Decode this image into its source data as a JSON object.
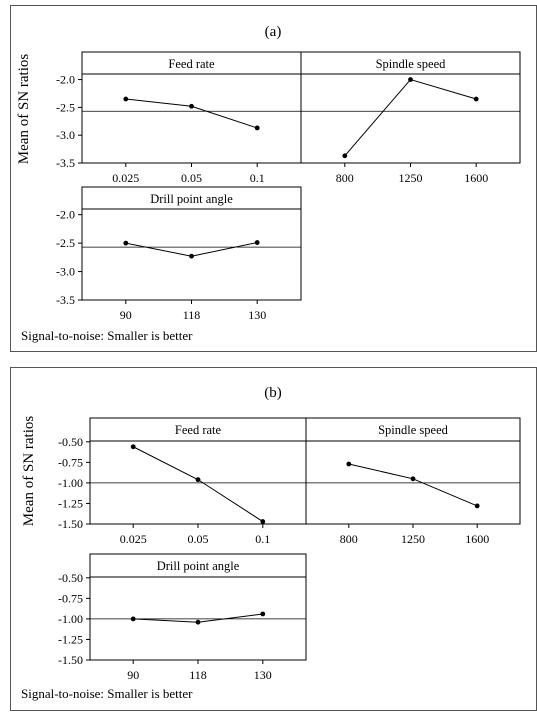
{
  "figures": [
    {
      "panel_label": "(a)",
      "ylabel": "Mean of SN ratios",
      "footnote": "Signal-to-noise: Smaller is better",
      "grand_mean": -2.57,
      "ylim": [
        -3.5,
        -1.9
      ],
      "yticks": [
        "-2.0",
        "-2.5",
        "-3.0",
        "-3.5"
      ],
      "ytick_values": [
        -2.0,
        -2.5,
        -3.0,
        -3.5
      ]
    },
    {
      "panel_label": "(b)",
      "ylabel": "Mean of SN ratios",
      "footnote": "Signal-to-noise: Smaller is better",
      "grand_mean": -1.0,
      "ylim": [
        -1.5,
        -0.49
      ],
      "yticks": [
        "-0.50",
        "-0.75",
        "-1.00",
        "-1.25",
        "-1.50"
      ],
      "ytick_values": [
        -0.5,
        -0.75,
        -1.0,
        -1.25,
        -1.5
      ]
    }
  ],
  "chart_data": [
    {
      "type": "line",
      "title": "(a)",
      "ylabel": "Mean of SN ratios",
      "ylim": [
        -3.5,
        -1.9
      ],
      "reference_line": -2.57,
      "panels": [
        {
          "name": "Feed rate",
          "categories": [
            "0.025",
            "0.05",
            "0.1"
          ],
          "values": [
            -2.35,
            -2.48,
            -2.87
          ]
        },
        {
          "name": "Spindle speed",
          "categories": [
            "800",
            "1250",
            "1600"
          ],
          "values": [
            -3.37,
            -2.0,
            -2.35
          ]
        },
        {
          "name": "Drill point angle",
          "categories": [
            "90",
            "118",
            "130"
          ],
          "values": [
            -2.5,
            -2.73,
            -2.49
          ]
        }
      ]
    },
    {
      "type": "line",
      "title": "(b)",
      "ylabel": "Mean of SN ratios",
      "ylim": [
        -1.5,
        -0.49
      ],
      "reference_line": -1.0,
      "panels": [
        {
          "name": "Feed rate",
          "categories": [
            "0.025",
            "0.05",
            "0.1"
          ],
          "values": [
            -0.56,
            -0.96,
            -1.47
          ]
        },
        {
          "name": "Spindle speed",
          "categories": [
            "800",
            "1250",
            "1600"
          ],
          "values": [
            -0.77,
            -0.95,
            -1.28
          ]
        },
        {
          "name": "Drill point angle",
          "categories": [
            "90",
            "118",
            "130"
          ],
          "values": [
            -1.0,
            -1.04,
            -0.94
          ]
        }
      ]
    }
  ]
}
